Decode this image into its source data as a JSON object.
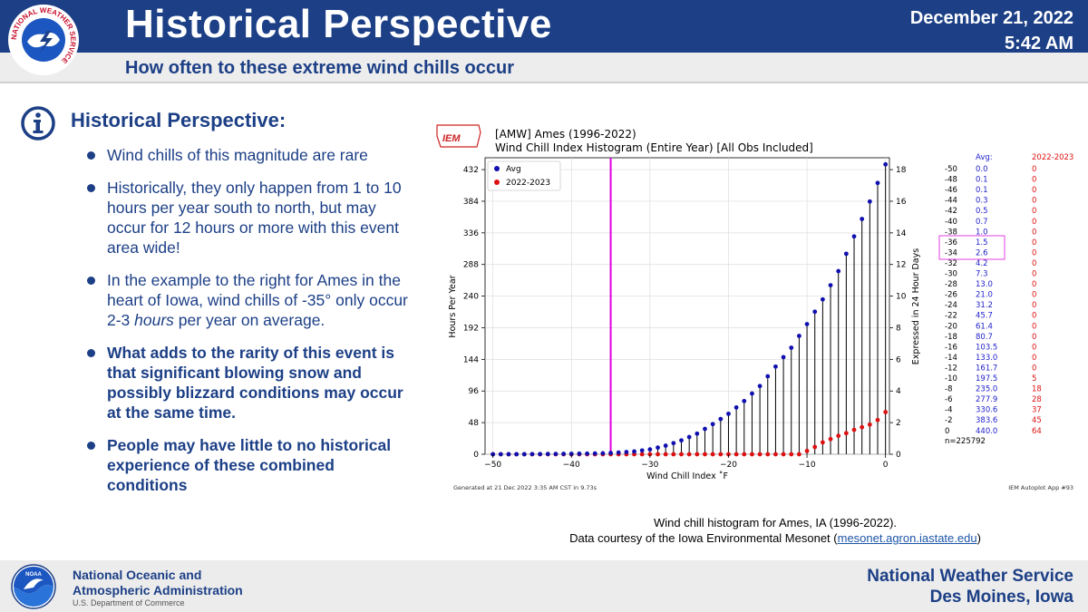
{
  "header": {
    "logo_text": "NATIONAL WEATHER SERVICE",
    "title": "Historical Perspective",
    "subtitle": "How often to these extreme wind chills occur",
    "date": "December 21, 2022",
    "time": "5:42 AM"
  },
  "section": {
    "title": "Historical Perspective:",
    "bullets": [
      "Wind chills of this magnitude are rare",
      "Historically, they only happen from 1 to 10 hours per year south to north, but may occur for 12 hours or more with this event area wide!",
      "In the example to the right for Ames in the heart of Iowa, wind chills of -35° only occur 2-3 hours per year on average.",
      "What adds to the rarity of this event is that significant blowing snow and possibly blizzard conditions may occur at the same time.",
      "People may have little to no historical experience of these combined conditions"
    ],
    "bullet3_parts": {
      "before": "In the example to the right for Ames in the heart of Iowa, wind chills of -35° only occur 2-3 ",
      "emph": "hours",
      "after": " per year on average."
    }
  },
  "chart_data": {
    "type": "scatter",
    "logo_text": "IEM",
    "title": "[AMW] Ames (1996-2022)",
    "subtitle": "Wind Chill Index Histogram (Entire Year) [All Obs Included]",
    "xlabel": "Wind Chill Index ˚F",
    "ylabel": "Hours Per Year",
    "y2label": "Expressed in 24 Hour Days",
    "xlim": [
      -51,
      0.5
    ],
    "ylim": [
      0,
      450
    ],
    "xticks": [
      -50,
      -40,
      -30,
      -20,
      -10,
      0
    ],
    "yticks": [
      0,
      48,
      96,
      144,
      192,
      240,
      288,
      336,
      384,
      432
    ],
    "y2ticks": [
      0,
      2,
      4,
      6,
      8,
      10,
      12,
      14,
      16,
      18
    ],
    "threshold_line": -35,
    "legend": [
      "Avg",
      "2022-2023"
    ],
    "avg_x": [
      -50,
      -49,
      -48,
      -47,
      -46,
      -45,
      -44,
      -43,
      -42,
      -41,
      -40,
      -39,
      -38,
      -37,
      -36,
      -35,
      -34,
      -33,
      -32,
      -31,
      -30,
      -29,
      -28,
      -27,
      -26,
      -25,
      -24,
      -23,
      -22,
      -21,
      -20,
      -19,
      -18,
      -17,
      -16,
      -15,
      -14,
      -13,
      -12,
      -11,
      -10,
      -9,
      -8,
      -7,
      -6,
      -5,
      -4,
      -3,
      -2,
      -1,
      0
    ],
    "avg_y": [
      0.0,
      0.05,
      0.1,
      0.1,
      0.1,
      0.2,
      0.3,
      0.4,
      0.5,
      0.6,
      0.7,
      0.85,
      1.0,
      1.2,
      1.5,
      2.0,
      2.6,
      3.4,
      4.2,
      5.7,
      7.3,
      10.1,
      13.0,
      16.9,
      21.0,
      26.1,
      31.2,
      38.5,
      45.7,
      53.5,
      61.4,
      71.0,
      80.7,
      92.1,
      103.5,
      118.3,
      133.0,
      147.4,
      161.7,
      179.6,
      197.5,
      216.3,
      235.0,
      256.5,
      277.9,
      304.3,
      330.6,
      357.1,
      383.6,
      411.8,
      440.0
    ],
    "obs_x": [
      -50,
      -49,
      -48,
      -47,
      -46,
      -45,
      -44,
      -43,
      -42,
      -41,
      -40,
      -39,
      -38,
      -37,
      -36,
      -35,
      -34,
      -33,
      -32,
      -31,
      -30,
      -29,
      -28,
      -27,
      -26,
      -25,
      -24,
      -23,
      -22,
      -21,
      -20,
      -19,
      -18,
      -17,
      -16,
      -15,
      -14,
      -13,
      -12,
      -11,
      -10,
      -9,
      -8,
      -7,
      -6,
      -5,
      -4,
      -3,
      -2,
      -1,
      0
    ],
    "obs_y": [
      0,
      0,
      0,
      0,
      0,
      0,
      0,
      0,
      0,
      0,
      0,
      0,
      0,
      0,
      0,
      0,
      0,
      0,
      0,
      0,
      0,
      0,
      0,
      0,
      0,
      0,
      0,
      0,
      0,
      0,
      0,
      0,
      0,
      0,
      0,
      0,
      0,
      0,
      0,
      0,
      5,
      11,
      18,
      23,
      28,
      32,
      37,
      41,
      45,
      52,
      64
    ],
    "table": {
      "headers": [
        "",
        "Avg:",
        "2022-2023"
      ],
      "rows": [
        [
          "-50",
          "0.0",
          "0"
        ],
        [
          "-48",
          "0.1",
          "0"
        ],
        [
          "-46",
          "0.1",
          "0"
        ],
        [
          "-44",
          "0.3",
          "0"
        ],
        [
          "-42",
          "0.5",
          "0"
        ],
        [
          "-40",
          "0.7",
          "0"
        ],
        [
          "-38",
          "1.0",
          "0"
        ],
        [
          "-36",
          "1.5",
          "0"
        ],
        [
          "-34",
          "2.6",
          "0"
        ],
        [
          "-32",
          "4.2",
          "0"
        ],
        [
          "-30",
          "7.3",
          "0"
        ],
        [
          "-28",
          "13.0",
          "0"
        ],
        [
          "-26",
          "21.0",
          "0"
        ],
        [
          "-24",
          "31.2",
          "0"
        ],
        [
          "-22",
          "45.7",
          "0"
        ],
        [
          "-20",
          "61.4",
          "0"
        ],
        [
          "-18",
          "80.7",
          "0"
        ],
        [
          "-16",
          "103.5",
          "0"
        ],
        [
          "-14",
          "133.0",
          "0"
        ],
        [
          "-12",
          "161.7",
          "0"
        ],
        [
          "-10",
          "197.5",
          "5"
        ],
        [
          "-8",
          "235.0",
          "18"
        ],
        [
          "-6",
          "277.9",
          "28"
        ],
        [
          "-4",
          "330.6",
          "37"
        ],
        [
          "-2",
          "383.6",
          "45"
        ],
        [
          "0",
          "440.0",
          "64"
        ]
      ],
      "n": "n=225792"
    },
    "footer_left": "Generated at 21 Dec 2022 3:35 AM CST in 9.73s",
    "footer_right": "IEM Autoplot App #93"
  },
  "caption": {
    "line1": "Wind chill histogram for Ames, IA (1996-2022).",
    "line2_before": "Data courtesy of the Iowa Environmental Mesonet (",
    "link": "mesonet.agron.iastate.edu",
    "line2_after": ")"
  },
  "footer": {
    "noaa_line1": "National Oceanic and",
    "noaa_line2": "Atmospheric Administration",
    "noaa_logo_text": "NOAA",
    "dept": "U.S. Department of Commerce",
    "office_line1": "National Weather Service",
    "office_line2": "Des Moines, Iowa"
  },
  "colors": {
    "brand_blue": "#1c3f86",
    "avg_marker": "#1010b0",
    "obs_marker": "#dd1111",
    "threshold": "#e000e0"
  }
}
